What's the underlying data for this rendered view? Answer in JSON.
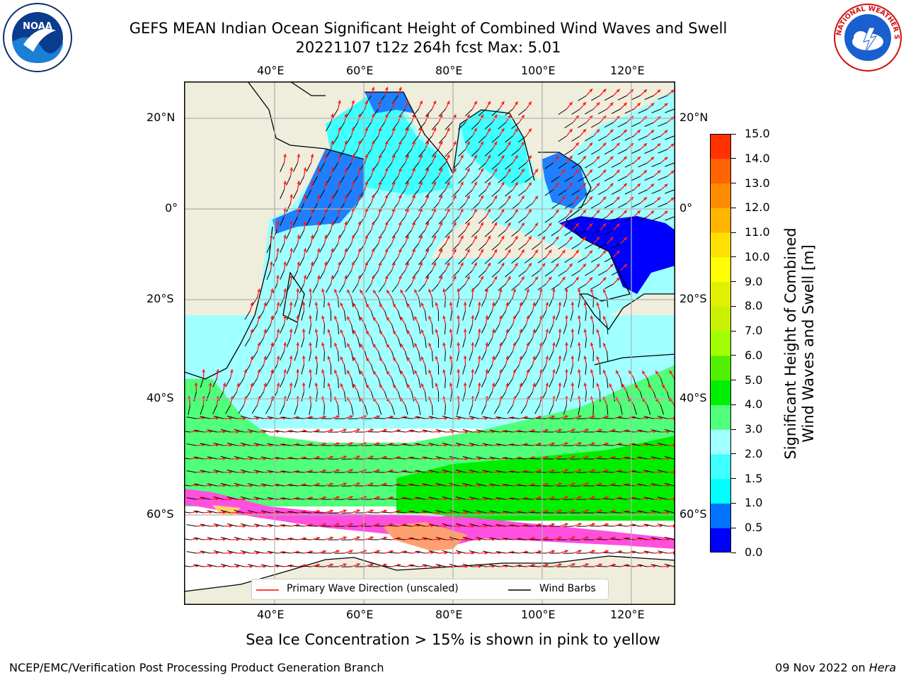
{
  "title": {
    "line1": "GEFS MEAN Indian Ocean Significant Height of Combined Wind Waves and Swell",
    "line2": "20221107 t12z 264h fcst   Max: 5.01"
  },
  "map": {
    "lon_labels_top": [
      "40°E",
      "60°E",
      "80°E",
      "100°E",
      "120°E"
    ],
    "lon_labels_bottom": [
      "40°E",
      "60°E",
      "80°E",
      "100°E",
      "120°E"
    ],
    "lat_labels_left": [
      "20°N",
      "0°",
      "20°S",
      "40°S",
      "60°S"
    ],
    "lat_labels_right": [
      "20°N",
      "0°",
      "20°S",
      "40°S",
      "60°S"
    ],
    "legend": {
      "wave_label": "Primary Wave Direction (unscaled)",
      "wind_label": "Wind Barbs",
      "wave_color": "#ff0000",
      "wind_color": "#000000"
    },
    "land_color": "#efeddc",
    "ice_note": "Sea Ice Concentration > 15% is shown in pink to yellow"
  },
  "colorbar": {
    "label_line1": "Significant Height of Combined",
    "label_line2": "Wind Waves and Swell [m]",
    "ticks": [
      "15.0",
      "14.0",
      "13.0",
      "12.0",
      "11.0",
      "10.0",
      "9.0",
      "8.0",
      "7.0",
      "6.0",
      "5.0",
      "4.0",
      "3.0",
      "2.0",
      "1.5",
      "1.0",
      "0.5",
      "0.0"
    ],
    "colors": [
      "#0000ff",
      "#0073ff",
      "#00ffff",
      "#40ffff",
      "#a0ffff",
      "#50ff7a",
      "#00ee00",
      "#50f000",
      "#a0ff00",
      "#c8f000",
      "#e0f000",
      "#ffff00",
      "#ffe000",
      "#ffb400",
      "#ff8c00",
      "#ff6400",
      "#ff3200"
    ]
  },
  "logos": {
    "noaa_text": "NOAA",
    "nws_text": "NATIONAL WEATHER SERVICE"
  },
  "footer": {
    "left": "NCEP/EMC/Verification Post Processing Product Generation Branch",
    "right_date": "09 Nov 2022 on ",
    "right_machine": "Hera"
  }
}
